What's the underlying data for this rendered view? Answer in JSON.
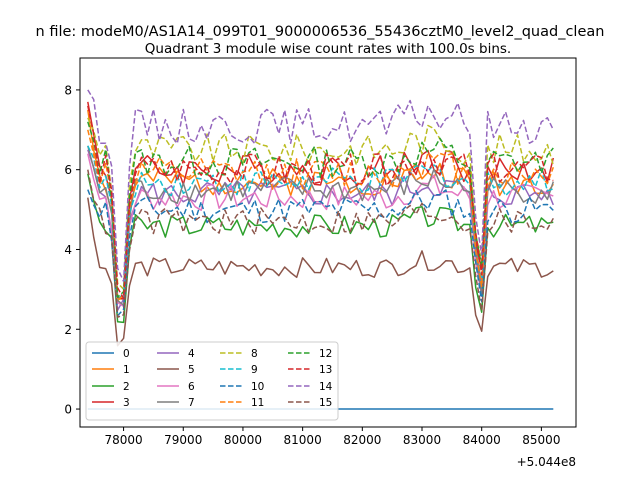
{
  "chart_data": {
    "type": "line",
    "suptitle": "n file: modeM0/AS1A14_099T01_9000006536_55436cztM0_level2_quad_clean",
    "title": "Quadrant 3 module wise count rates with 100.0s bins.",
    "xlabel": "",
    "ylabel": "",
    "x_offset_label": "+5.044e8",
    "xlim": [
      77270,
      85580
    ],
    "ylim": [
      -0.45,
      8.8
    ],
    "xticks": [
      78000,
      79000,
      80000,
      81000,
      82000,
      83000,
      84000,
      85000
    ],
    "xtick_labels": [
      "78000",
      "79000",
      "80000",
      "81000",
      "82000",
      "83000",
      "84000",
      "85000"
    ],
    "yticks": [
      0,
      2,
      4,
      6,
      8
    ],
    "ytick_labels": [
      "0",
      "2",
      "4",
      "6",
      "8"
    ],
    "x_start": 77400,
    "x_step": 100,
    "n_points": 79,
    "dips": [
      {
        "center": 77950,
        "width": 180,
        "factor": 0.28
      },
      {
        "center": 83960,
        "width": 130,
        "factor": 0.45
      },
      {
        "center": 84000,
        "width": 90,
        "factor": 0.55
      }
    ],
    "legend": {
      "location": "lower-left",
      "columns": 4
    },
    "series": [
      {
        "name": "0",
        "color": "#1f77b4",
        "dash": "solid",
        "level": 0.0,
        "amp": 0.0,
        "seed": 1,
        "start": 0.0
      },
      {
        "name": "1",
        "color": "#ff7f0e",
        "dash": "solid",
        "level": 5.7,
        "amp": 0.35,
        "seed": 2,
        "start": 7.5
      },
      {
        "name": "2",
        "color": "#2ca02c",
        "dash": "solid",
        "level": 4.6,
        "amp": 0.3,
        "seed": 3,
        "start": 5.9
      },
      {
        "name": "3",
        "color": "#d62728",
        "dash": "solid",
        "level": 6.0,
        "amp": 0.4,
        "seed": 4,
        "start": 7.7
      },
      {
        "name": "4",
        "color": "#9467bd",
        "dash": "solid",
        "level": 5.4,
        "amp": 0.35,
        "seed": 5,
        "start": 6.5
      },
      {
        "name": "5",
        "color": "#8c564b",
        "dash": "solid",
        "level": 3.55,
        "amp": 0.25,
        "seed": 6,
        "start": 5.3
      },
      {
        "name": "6",
        "color": "#e377c2",
        "dash": "solid",
        "level": 5.3,
        "amp": 0.35,
        "seed": 7,
        "start": 6.4
      },
      {
        "name": "7",
        "color": "#7f7f7f",
        "dash": "solid",
        "level": 5.5,
        "amp": 0.35,
        "seed": 8,
        "start": 6.6
      },
      {
        "name": "8",
        "color": "#bcbd22",
        "dash": "dashed",
        "level": 6.5,
        "amp": 0.4,
        "seed": 9,
        "start": 7.3
      },
      {
        "name": "9",
        "color": "#17becf",
        "dash": "dashed",
        "level": 5.7,
        "amp": 0.35,
        "seed": 10,
        "start": 6.6
      },
      {
        "name": "10",
        "color": "#1f77b4",
        "dash": "dashed",
        "level": 5.0,
        "amp": 0.35,
        "seed": 11,
        "start": 5.5
      },
      {
        "name": "11",
        "color": "#ff7f0e",
        "dash": "dashed",
        "level": 5.9,
        "amp": 0.4,
        "seed": 12,
        "start": 7.0
      },
      {
        "name": "12",
        "color": "#2ca02c",
        "dash": "dashed",
        "level": 6.2,
        "amp": 0.4,
        "seed": 13,
        "start": 7.2
      },
      {
        "name": "13",
        "color": "#d62728",
        "dash": "dashed",
        "level": 6.0,
        "amp": 0.4,
        "seed": 14,
        "start": 7.6
      },
      {
        "name": "14",
        "color": "#9467bd",
        "dash": "dashed",
        "level": 7.1,
        "amp": 0.45,
        "seed": 15,
        "start": 8.0
      },
      {
        "name": "15",
        "color": "#8c564b",
        "dash": "dashed",
        "level": 4.7,
        "amp": 0.35,
        "seed": 16,
        "start": 6.0
      }
    ]
  }
}
